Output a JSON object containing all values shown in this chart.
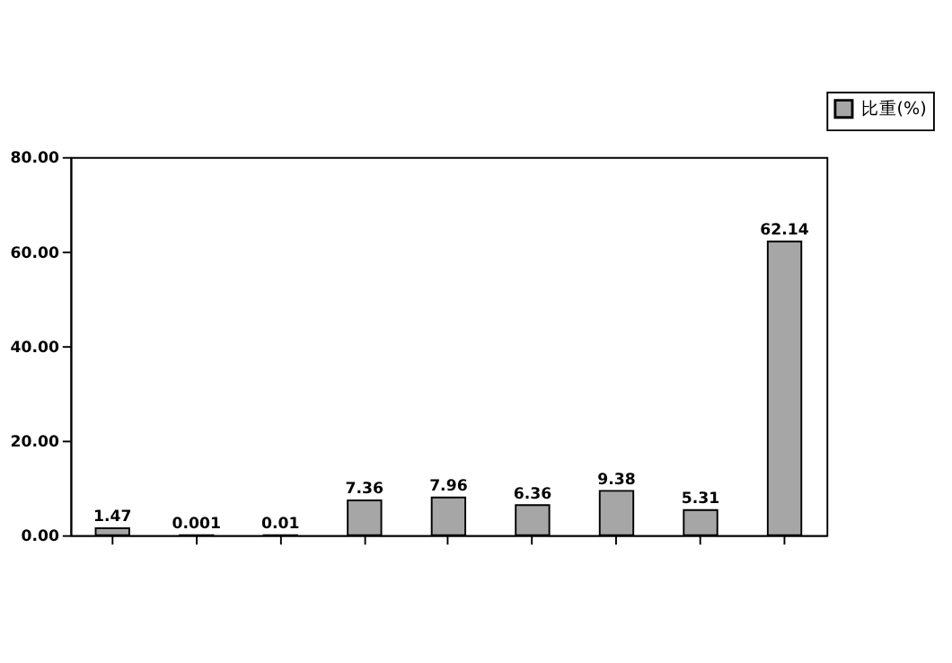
{
  "chart_data": {
    "type": "bar",
    "categories": [
      null,
      null,
      null,
      null,
      null,
      null,
      null,
      null,
      null
    ],
    "series": [
      {
        "name": "比重(%)",
        "color": "#a6a6a6",
        "values": [
          1.47,
          0.001,
          0.01,
          7.36,
          7.96,
          6.36,
          9.38,
          5.31,
          62.14
        ]
      }
    ],
    "ylim": [
      0,
      80
    ],
    "yticks": [
      {
        "value": 0,
        "label": "0.00"
      },
      {
        "value": 20,
        "label": "20.00"
      },
      {
        "value": 40,
        "label": "40.00"
      },
      {
        "value": 60,
        "label": "60.00"
      },
      {
        "value": 80,
        "label": "80.00"
      }
    ],
    "data_labels": true,
    "legend": "top right",
    "grid": false
  }
}
